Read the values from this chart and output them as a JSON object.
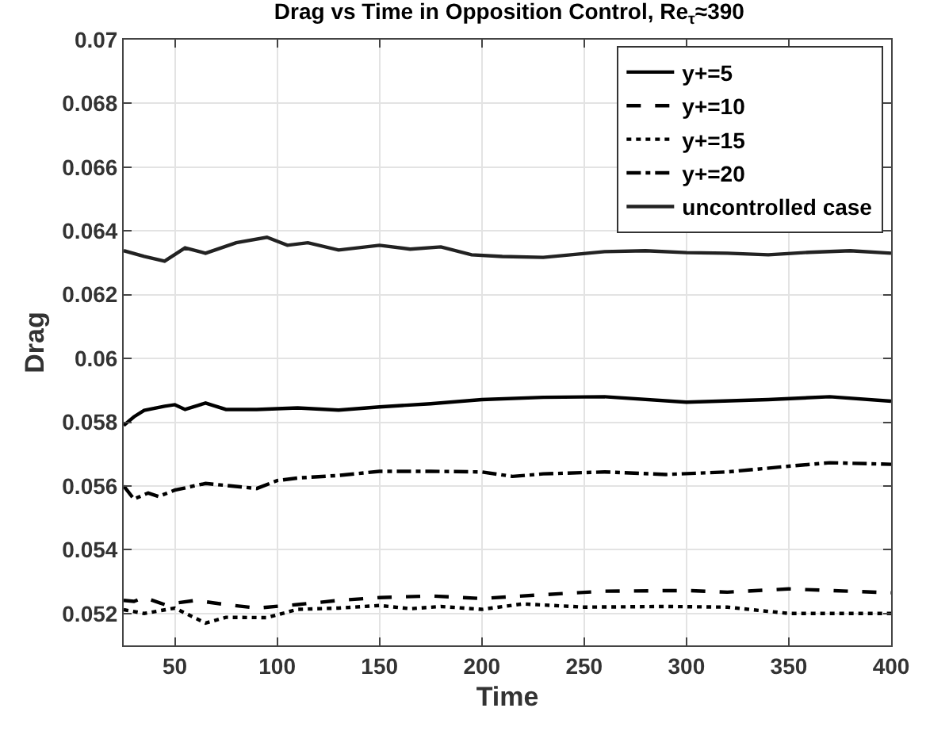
{
  "chart_data": {
    "type": "line",
    "title": "Drag vs Time in Opposition Control, Re$_{τ}$≈390",
    "xlabel": "Time",
    "ylabel": "Drag",
    "xlim": [
      25,
      400
    ],
    "xticks": [
      50,
      100,
      150,
      200,
      250,
      300,
      350,
      400
    ],
    "ylim": [
      0.051,
      0.07
    ],
    "yticks": [
      0.052,
      0.054,
      0.056,
      0.058,
      0.06,
      0.062,
      0.064,
      0.066,
      0.068,
      0.07
    ],
    "grid": true,
    "legend": "top right",
    "marker": "none",
    "series": [
      {
        "name": "y+=5",
        "color": "#000000",
        "line_style": "solid",
        "x": [
          25,
          30,
          35,
          45,
          50,
          55,
          65,
          75,
          90,
          110,
          130,
          150,
          175,
          200,
          230,
          260,
          300,
          340,
          370,
          400
        ],
        "values": [
          0.0579,
          0.05817,
          0.05837,
          0.0585,
          0.05855,
          0.0584,
          0.0586,
          0.0584,
          0.0584,
          0.05845,
          0.05838,
          0.05848,
          0.05858,
          0.05871,
          0.05878,
          0.0588,
          0.05863,
          0.05871,
          0.0588,
          0.05866
        ]
      },
      {
        "name": "y+=10",
        "color": "#000000",
        "line_style": "dashed",
        "x": [
          25,
          30,
          35,
          45,
          60,
          75,
          90,
          110,
          130,
          150,
          175,
          200,
          230,
          260,
          300,
          320,
          350,
          400
        ],
        "values": [
          0.05241,
          0.05238,
          0.0525,
          0.05228,
          0.05241,
          0.05228,
          0.05217,
          0.05228,
          0.05241,
          0.0525,
          0.05255,
          0.05247,
          0.05259,
          0.0527,
          0.05272,
          0.05267,
          0.05277,
          0.05265
        ]
      },
      {
        "name": "y+=15",
        "color": "#000000",
        "line_style": "dotted",
        "x": [
          25,
          35,
          50,
          65,
          75,
          95,
          110,
          130,
          150,
          165,
          180,
          200,
          220,
          250,
          290,
          320,
          350,
          400
        ],
        "values": [
          0.05212,
          0.052,
          0.05217,
          0.0517,
          0.05188,
          0.05187,
          0.05213,
          0.05217,
          0.05225,
          0.05215,
          0.05222,
          0.05213,
          0.0523,
          0.0522,
          0.05222,
          0.0522,
          0.052,
          0.052
        ]
      },
      {
        "name": "y+=20",
        "color": "#000000",
        "line_style": "dashdot",
        "x": [
          25,
          30,
          37,
          42,
          50,
          65,
          90,
          100,
          110,
          130,
          150,
          175,
          200,
          215,
          230,
          260,
          290,
          320,
          350,
          370,
          400
        ],
        "values": [
          0.056,
          0.05559,
          0.05578,
          0.05567,
          0.05587,
          0.05608,
          0.05592,
          0.05617,
          0.05625,
          0.05633,
          0.05646,
          0.05646,
          0.05644,
          0.0563,
          0.05638,
          0.05644,
          0.05636,
          0.05644,
          0.05662,
          0.05673,
          0.05668
        ]
      },
      {
        "name": "uncontrolled case",
        "color": "#222222",
        "line_style": "solid",
        "x": [
          25,
          35,
          45,
          55,
          65,
          80,
          95,
          105,
          115,
          130,
          150,
          165,
          180,
          195,
          210,
          230,
          260,
          280,
          300,
          320,
          340,
          360,
          380,
          400
        ],
        "values": [
          0.06338,
          0.0632,
          0.06305,
          0.06347,
          0.0633,
          0.06363,
          0.0638,
          0.06355,
          0.06363,
          0.0634,
          0.06355,
          0.06343,
          0.0635,
          0.06325,
          0.0632,
          0.06317,
          0.06335,
          0.06338,
          0.06332,
          0.0633,
          0.06325,
          0.06333,
          0.06338,
          0.0633
        ]
      }
    ]
  }
}
